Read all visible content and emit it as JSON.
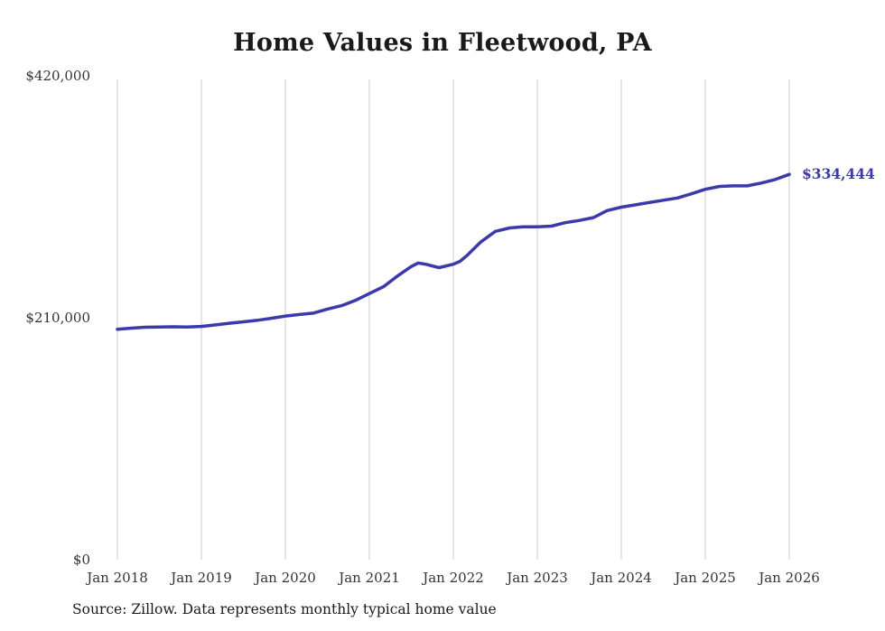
{
  "title": "Home Values in Fleetwood, PA",
  "source_note": "Source: Zillow. Data represents monthly typical home value",
  "chart_data": {
    "type": "line",
    "title": "Home Values in Fleetwood, PA",
    "xlabel": "",
    "ylabel": "",
    "xlim": [
      2018,
      2026
    ],
    "ylim": [
      0,
      420000
    ],
    "grid": "vertical-only",
    "legend": "none",
    "line_color": "#3a3aad",
    "gridline_color": "#cccccc",
    "tick_label_color": "#333333",
    "x_ticks": [
      {
        "year": 2018,
        "label": "Jan 2018"
      },
      {
        "year": 2019,
        "label": "Jan 2019"
      },
      {
        "year": 2020,
        "label": "Jan 2020"
      },
      {
        "year": 2021,
        "label": "Jan 2021"
      },
      {
        "year": 2022,
        "label": "Jan 2022"
      },
      {
        "year": 2023,
        "label": "Jan 2023"
      },
      {
        "year": 2024,
        "label": "Jan 2024"
      },
      {
        "year": 2025,
        "label": "Jan 2025"
      },
      {
        "year": 2026,
        "label": "Jan 2026"
      }
    ],
    "y_ticks": [
      {
        "value": 0,
        "label": "$0"
      },
      {
        "value": 210000,
        "label": "$210,000"
      },
      {
        "value": 420000,
        "label": "$420,000"
      }
    ],
    "end_annotation": {
      "label": "$334,444",
      "value": 334444
    },
    "series": [
      {
        "name": "Monthly typical home value",
        "points": [
          [
            2018.0,
            200000
          ],
          [
            2018.17,
            201000
          ],
          [
            2018.33,
            201800
          ],
          [
            2018.5,
            202000
          ],
          [
            2018.67,
            202200
          ],
          [
            2018.83,
            202000
          ],
          [
            2019.0,
            202500
          ],
          [
            2019.17,
            203800
          ],
          [
            2019.33,
            205200
          ],
          [
            2019.5,
            206500
          ],
          [
            2019.67,
            207800
          ],
          [
            2019.83,
            209500
          ],
          [
            2020.0,
            211500
          ],
          [
            2020.17,
            212800
          ],
          [
            2020.33,
            214000
          ],
          [
            2020.5,
            217500
          ],
          [
            2020.67,
            220500
          ],
          [
            2020.83,
            225000
          ],
          [
            2021.0,
            231000
          ],
          [
            2021.17,
            237000
          ],
          [
            2021.33,
            246000
          ],
          [
            2021.5,
            254500
          ],
          [
            2021.58,
            257500
          ],
          [
            2021.67,
            256500
          ],
          [
            2021.83,
            253500
          ],
          [
            2022.0,
            256500
          ],
          [
            2022.08,
            259000
          ],
          [
            2022.17,
            264500
          ],
          [
            2022.33,
            276000
          ],
          [
            2022.5,
            285000
          ],
          [
            2022.67,
            288000
          ],
          [
            2022.83,
            289000
          ],
          [
            2023.0,
            289000
          ],
          [
            2023.17,
            289500
          ],
          [
            2023.33,
            292500
          ],
          [
            2023.5,
            294500
          ],
          [
            2023.67,
            297000
          ],
          [
            2023.83,
            303000
          ],
          [
            2024.0,
            306000
          ],
          [
            2024.17,
            308000
          ],
          [
            2024.33,
            310000
          ],
          [
            2024.5,
            312000
          ],
          [
            2024.67,
            314000
          ],
          [
            2024.83,
            317500
          ],
          [
            2025.0,
            321500
          ],
          [
            2025.17,
            324000
          ],
          [
            2025.33,
            324500
          ],
          [
            2025.5,
            324500
          ],
          [
            2025.67,
            327000
          ],
          [
            2025.83,
            330000
          ],
          [
            2026.0,
            334444
          ]
        ]
      }
    ]
  }
}
